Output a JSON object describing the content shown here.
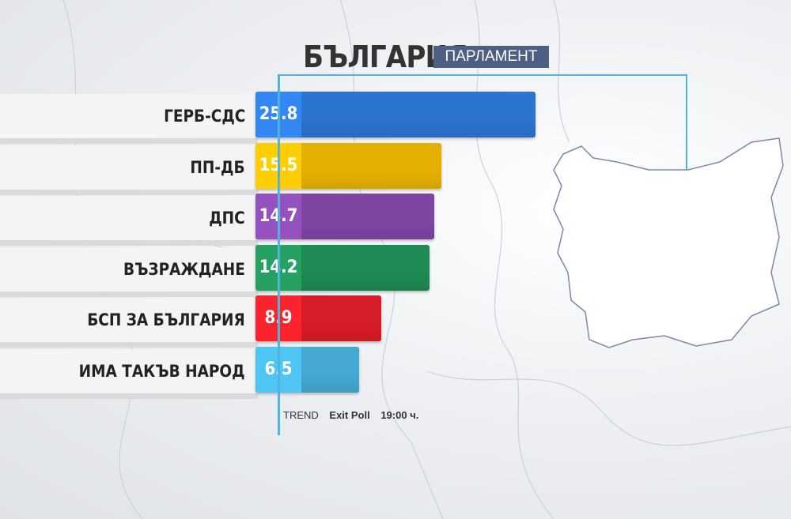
{
  "header": {
    "title": "БЪЛГАРИЯ",
    "badge": "ПАРЛАМЕНТ"
  },
  "footer": {
    "source": "TREND",
    "type": "Exit Poll",
    "time": "19:00 ч."
  },
  "chart_data": {
    "type": "bar",
    "orientation": "horizontal",
    "categories": [
      "ГЕРБ-СДС",
      "ПП-ДБ",
      "ДПС",
      "ВЪЗРАЖДАНЕ",
      "БСП ЗА БЪЛГАРИЯ",
      "ИМА ТАКЪВ НАРОД"
    ],
    "values": [
      25.8,
      15.5,
      14.7,
      14.2,
      8.9,
      6.5
    ],
    "value_labels": [
      "25.8",
      "15.5",
      "14.7",
      "14.2",
      "8.9",
      "6.5"
    ],
    "colors": [
      "#2f7de0",
      "#f7bf00",
      "#8a4bb0",
      "#22955a",
      "#e8202a",
      "#49b6e2"
    ],
    "xlim": [
      0,
      30
    ],
    "grid": false
  }
}
